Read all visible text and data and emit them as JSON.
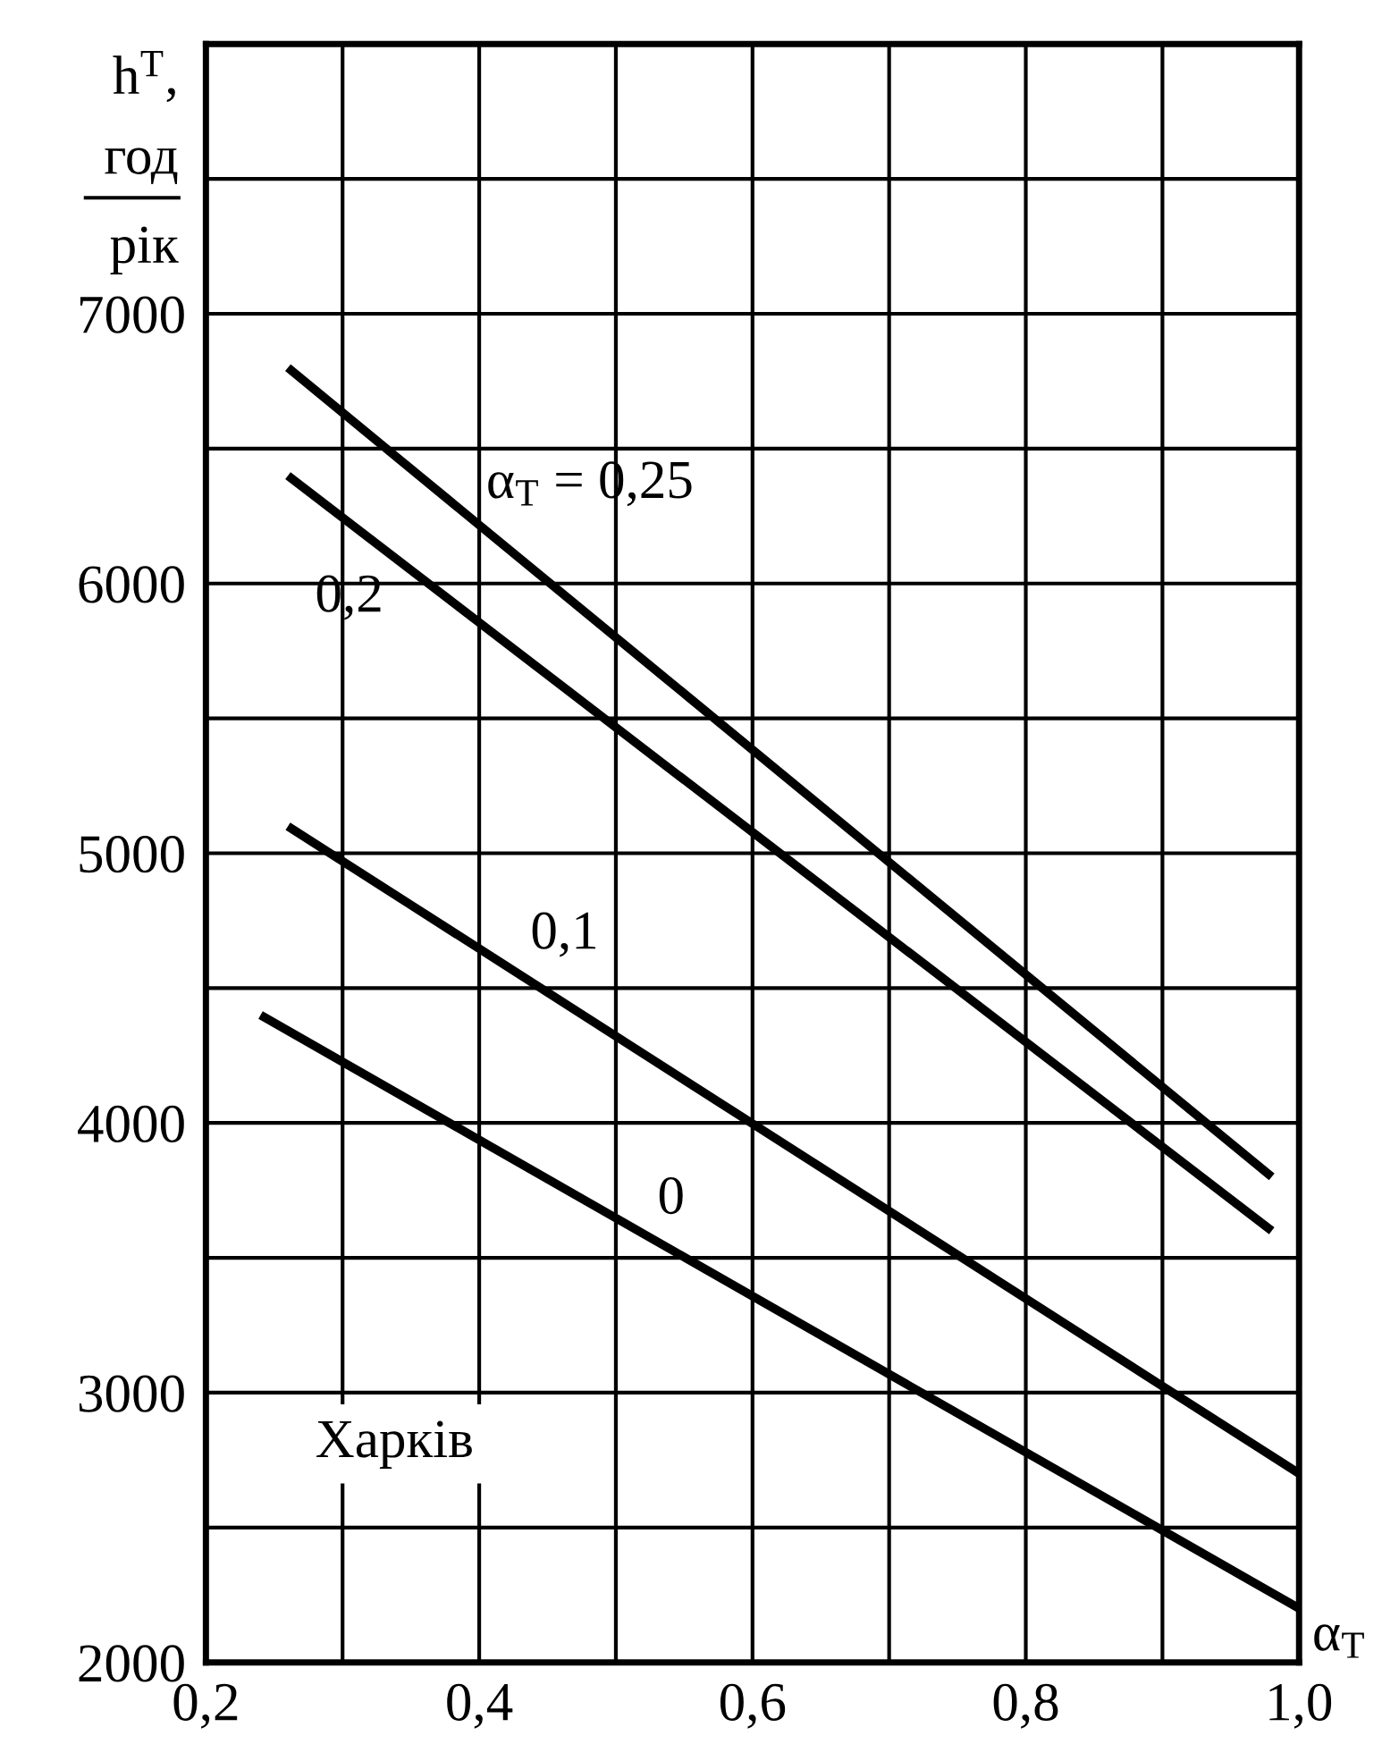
{
  "chart_data": {
    "type": "line",
    "xlabel": "α$_{T}$",
    "ylabel": "h$^{T}$,\nгод\nрік",
    "xlim": [
      0.2,
      1.0
    ],
    "xticks": [
      {
        "value": 0.2,
        "label": "0,2"
      },
      {
        "value": 0.3,
        "label": null
      },
      {
        "value": 0.4,
        "label": "0,4"
      },
      {
        "value": 0.5,
        "label": null
      },
      {
        "value": 0.6,
        "label": "0,6"
      },
      {
        "value": 0.7,
        "label": null
      },
      {
        "value": 0.8,
        "label": "0,8"
      },
      {
        "value": 0.9,
        "label": null
      },
      {
        "value": 1.0,
        "label": "1,0"
      }
    ],
    "ylim": [
      2000,
      8000
    ],
    "yticks": [
      2000,
      {
        "value": 2500,
        "label": null
      },
      3000,
      {
        "value": 3500,
        "label": null
      },
      4000,
      {
        "value": 4500,
        "label": null
      },
      5000,
      {
        "value": 5500,
        "label": null
      },
      6000,
      {
        "value": 6500,
        "label": null
      },
      7000,
      {
        "value": 7500,
        "label": null
      },
      {
        "value": 8000,
        "label": null
      }
    ],
    "grid": true,
    "series": [
      {
        "name": "α$_{T}$ = 0,25",
        "color": "#000000",
        "x": [
          0.26,
          0.98
        ],
        "values": [
          6800,
          3800
        ]
      },
      {
        "name": "0,2",
        "color": "#000000",
        "x": [
          0.26,
          0.98
        ],
        "values": [
          6400,
          3600
        ]
      },
      {
        "name": "0,1",
        "color": "#000000",
        "x": [
          0.26,
          1.0
        ],
        "values": [
          5100,
          2700
        ]
      },
      {
        "name": "0",
        "color": "#000000",
        "x": [
          0.24,
          1.0
        ],
        "values": [
          4400,
          2200
        ]
      }
    ],
    "annotations": [
      "Харків"
    ]
  }
}
